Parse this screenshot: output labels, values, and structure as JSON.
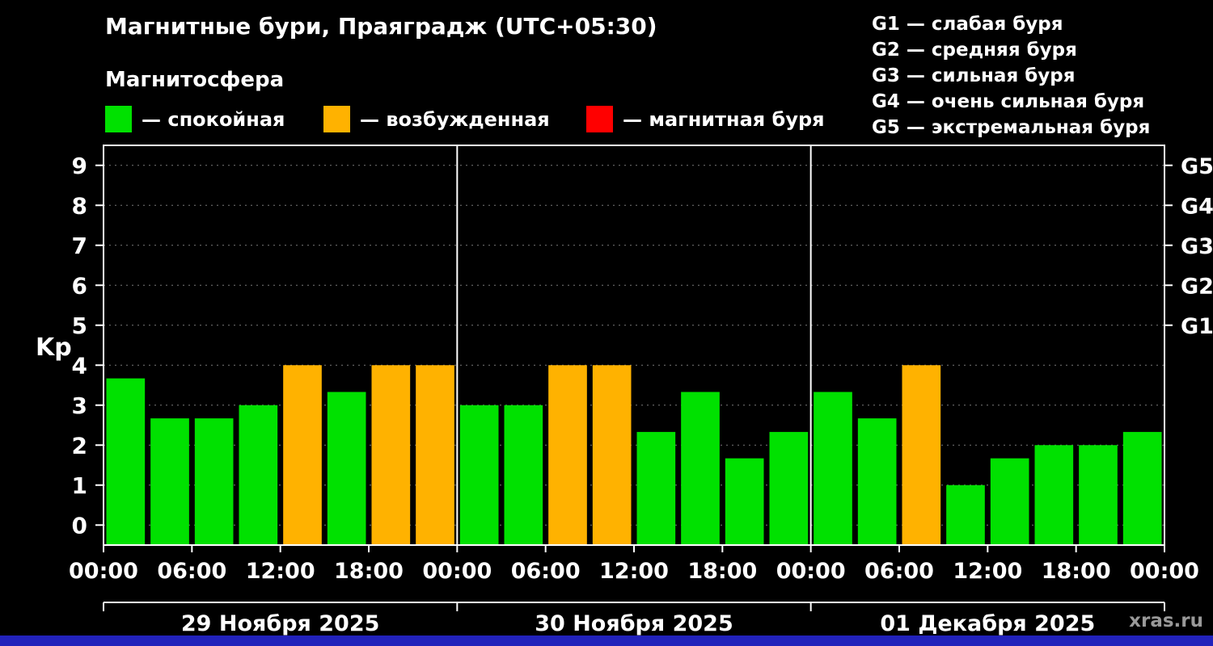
{
  "title": "Магнитные бури, Праяградж (UTC+05:30)",
  "subtitle": "Магнитосфера",
  "legend": {
    "items": [
      {
        "label": "— спокойная",
        "color": "#00e100",
        "name": "quiet"
      },
      {
        "label": "— возбужденная",
        "color": "#ffb200",
        "name": "excited"
      },
      {
        "label": "— магнитная буря",
        "color": "#ff0000",
        "name": "storm"
      }
    ]
  },
  "storm_legend": [
    "G1 — слабая буря",
    "G2 — средняя буря",
    "G3 — сильная буря",
    "G4 — очень сильная буря",
    "G5 — экстремальная буря"
  ],
  "watermark": "xras.ru",
  "colors": {
    "background": "#000000",
    "frame": "#ffffff",
    "grid": "#7a7a7a",
    "footer_strip": "#2222bb",
    "watermark": "#999999"
  },
  "chart_data": {
    "type": "bar",
    "title": "Магнитные бури, Праяградж (UTC+05:30)",
    "ylabel": "Kp",
    "xlabel": "",
    "ylim": [
      -0.5,
      9.5
    ],
    "yticks": [
      0,
      1,
      2,
      3,
      4,
      5,
      6,
      7,
      8,
      9
    ],
    "right_ticks": [
      {
        "value": 5,
        "label": "G1"
      },
      {
        "value": 6,
        "label": "G2"
      },
      {
        "value": 7,
        "label": "G3"
      },
      {
        "value": 8,
        "label": "G4"
      },
      {
        "value": 9,
        "label": "G5"
      }
    ],
    "hours_total": 72,
    "bar_interval_hours": 3,
    "xtick_step_hours": 6,
    "xtick_labels": [
      "00:00",
      "06:00",
      "12:00",
      "18:00",
      "00:00",
      "06:00",
      "12:00",
      "18:00",
      "00:00",
      "06:00",
      "12:00",
      "18:00",
      "00:00"
    ],
    "day_labels": [
      "29 Ноября 2025",
      "30 Ноября 2025",
      "01 Декабря 2025"
    ],
    "day_boundaries_hours": [
      24,
      48
    ],
    "grid": true,
    "values": [
      3.67,
      2.67,
      2.67,
      3.0,
      4.0,
      3.33,
      4.0,
      4.0,
      3.0,
      3.0,
      4.0,
      4.0,
      2.33,
      3.33,
      1.67,
      2.33,
      3.33,
      2.67,
      4.0,
      1.0,
      1.67,
      2.0,
      2.0,
      2.33
    ],
    "colors": [
      "green",
      "green",
      "green",
      "green",
      "orange",
      "green",
      "orange",
      "orange",
      "green",
      "green",
      "orange",
      "orange",
      "green",
      "green",
      "green",
      "green",
      "green",
      "green",
      "orange",
      "green",
      "green",
      "green",
      "green",
      "green"
    ],
    "color_map": {
      "green": "#00e100",
      "orange": "#ffb200",
      "red": "#ff0000"
    }
  }
}
